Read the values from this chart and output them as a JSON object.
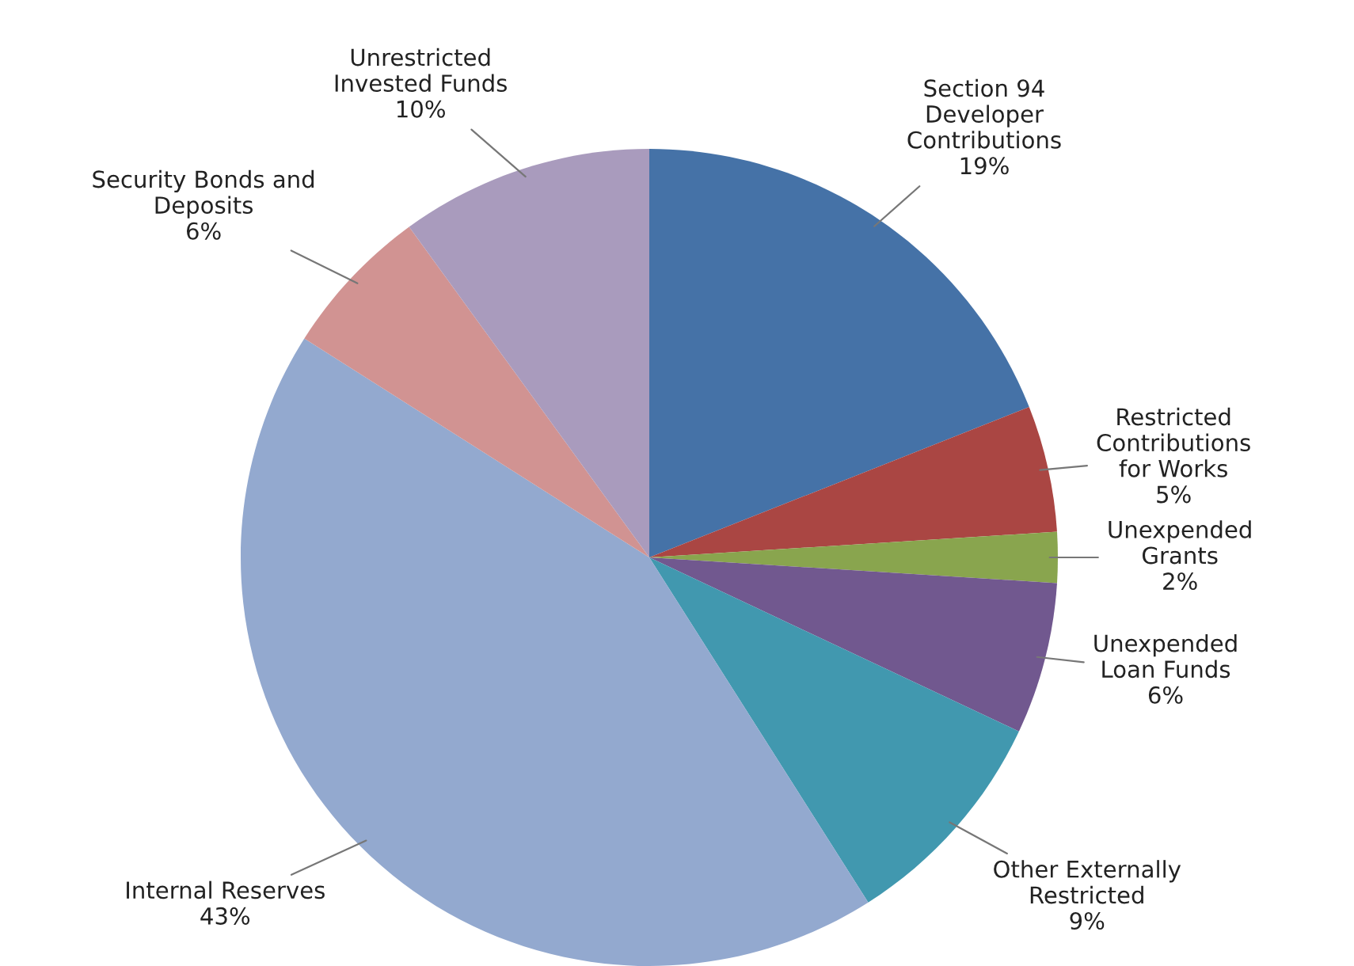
{
  "chart_data": {
    "type": "pie",
    "categories": [
      "Section 94\nDeveloper\nContributions",
      "Restricted\nContributions\nfor Works",
      "Unexpended\nGrants",
      "Unexpended\nLoan Funds",
      "Other Externally\nRestricted",
      "Internal Reserves",
      "Security Bonds and\nDeposits",
      "Unrestricted\nInvested Funds"
    ],
    "values": [
      19,
      5,
      2,
      6,
      9,
      43,
      6,
      10
    ],
    "value_labels": [
      "19%",
      "5%",
      "2%",
      "6%",
      "9%",
      "43%",
      "6%",
      "10%"
    ],
    "colors": [
      "#4572a7",
      "#aa4643",
      "#89a54e",
      "#71588f",
      "#4198af",
      "#93a9cf",
      "#d19392",
      "#a99bbd"
    ],
    "legend": false
  }
}
